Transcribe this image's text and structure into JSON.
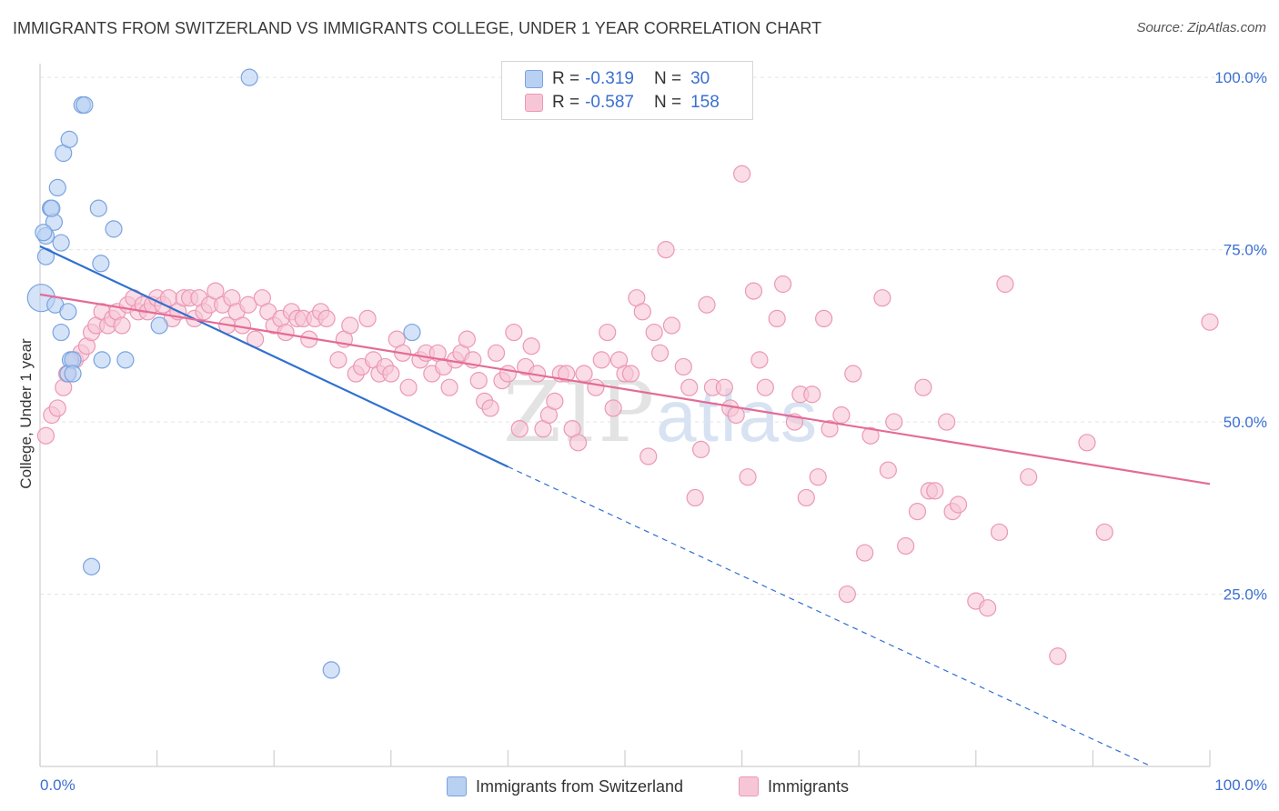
{
  "header": {
    "title": "IMMIGRANTS FROM SWITZERLAND VS IMMIGRANTS COLLEGE, UNDER 1 YEAR CORRELATION CHART",
    "source": "Source: ZipAtlas.com"
  },
  "watermark": {
    "zip": "ZIP",
    "atlas": "atlas"
  },
  "legend": {
    "rows": [
      {
        "r_label": "R =",
        "r_value": "-0.319",
        "n_label": "N =",
        "n_value": "30"
      },
      {
        "r_label": "R =",
        "r_value": "-0.587",
        "n_label": "N =",
        "n_value": "158"
      }
    ]
  },
  "bottom_legend": {
    "series1": "Immigrants from Switzerland",
    "series2": "Immigrants"
  },
  "colors": {
    "blue_fill": "#b8d0f1",
    "blue_stroke": "#7aa3e0",
    "blue_line": "#2f6fd0",
    "pink_fill": "#f7c6d6",
    "pink_stroke": "#ec98b4",
    "pink_line": "#e46b97",
    "tick_label": "#3b6fd1",
    "grid": "#e4e4e4"
  },
  "chart_data": {
    "type": "scatter",
    "title": "IMMIGRANTS FROM SWITZERLAND VS IMMIGRANTS COLLEGE, UNDER 1 YEAR CORRELATION CHART",
    "xlabel": "",
    "ylabel": "College, Under 1 year",
    "xlim": [
      0,
      100
    ],
    "ylim": [
      0,
      102
    ],
    "x_tick_labels": [
      "0.0%",
      "100.0%"
    ],
    "y_ticks": [
      25,
      50,
      75,
      100
    ],
    "y_tick_labels": [
      "25.0%",
      "50.0%",
      "75.0%",
      "100.0%"
    ],
    "grid": true,
    "legend_position": "top-center",
    "series": [
      {
        "name": "Immigrants from Switzerland",
        "color": "#b8d0f1",
        "trend": {
          "x0": 0,
          "y0": 75.5,
          "x1": 40,
          "y1": 43.5,
          "dashed_to_x": 95,
          "dashed_y": 0
        },
        "points": [
          [
            0.1,
            68
          ],
          [
            0.5,
            77
          ],
          [
            0.5,
            74
          ],
          [
            0.9,
            81
          ],
          [
            1.2,
            79
          ],
          [
            1.0,
            81
          ],
          [
            1.5,
            84
          ],
          [
            1.8,
            76
          ],
          [
            1.8,
            63
          ],
          [
            2.0,
            89
          ],
          [
            1.3,
            67
          ],
          [
            2.4,
            66
          ],
          [
            2.6,
            59
          ],
          [
            2.4,
            57
          ],
          [
            2.8,
            59
          ],
          [
            2.8,
            57
          ],
          [
            2.5,
            91
          ],
          [
            3.6,
            96
          ],
          [
            3.8,
            96
          ],
          [
            5.0,
            81
          ],
          [
            5.2,
            73
          ],
          [
            6.3,
            78
          ],
          [
            5.3,
            59
          ],
          [
            7.3,
            59
          ],
          [
            10.2,
            64
          ],
          [
            17.9,
            100
          ],
          [
            4.4,
            29
          ],
          [
            24.9,
            14
          ],
          [
            31.8,
            63
          ],
          [
            0.3,
            77.5
          ]
        ]
      },
      {
        "name": "Immigrants",
        "color": "#f7c6d6",
        "trend": {
          "x0": 0,
          "y0": 68.5,
          "x1": 100,
          "y1": 41
        },
        "points": [
          [
            0.5,
            48
          ],
          [
            1.0,
            51
          ],
          [
            1.5,
            52
          ],
          [
            2.0,
            55
          ],
          [
            2.3,
            57
          ],
          [
            3.0,
            59
          ],
          [
            3.5,
            60
          ],
          [
            4.0,
            61
          ],
          [
            4.4,
            63
          ],
          [
            4.8,
            64
          ],
          [
            5.3,
            66
          ],
          [
            5.8,
            64
          ],
          [
            6.2,
            65
          ],
          [
            6.6,
            66
          ],
          [
            7.0,
            64
          ],
          [
            7.5,
            67
          ],
          [
            8.0,
            68
          ],
          [
            8.4,
            66
          ],
          [
            8.8,
            67
          ],
          [
            9.2,
            66
          ],
          [
            9.6,
            67
          ],
          [
            10.0,
            68
          ],
          [
            10.5,
            67
          ],
          [
            11.0,
            68
          ],
          [
            11.3,
            65
          ],
          [
            11.8,
            66
          ],
          [
            12.3,
            68
          ],
          [
            12.8,
            68
          ],
          [
            13.2,
            65
          ],
          [
            13.6,
            68
          ],
          [
            14.0,
            66
          ],
          [
            14.5,
            67
          ],
          [
            15.0,
            69
          ],
          [
            15.6,
            67
          ],
          [
            16.0,
            64
          ],
          [
            16.4,
            68
          ],
          [
            16.8,
            66
          ],
          [
            17.3,
            64
          ],
          [
            17.8,
            67
          ],
          [
            18.4,
            62
          ],
          [
            19.0,
            68
          ],
          [
            19.5,
            66
          ],
          [
            20.0,
            64
          ],
          [
            20.6,
            65
          ],
          [
            21.0,
            63
          ],
          [
            21.5,
            66
          ],
          [
            22.0,
            65
          ],
          [
            22.5,
            65
          ],
          [
            23.0,
            62
          ],
          [
            23.5,
            65
          ],
          [
            24.0,
            66
          ],
          [
            24.5,
            65
          ],
          [
            25.5,
            59
          ],
          [
            26.0,
            62
          ],
          [
            26.5,
            64
          ],
          [
            27.0,
            57
          ],
          [
            27.5,
            58
          ],
          [
            28.0,
            65
          ],
          [
            28.5,
            59
          ],
          [
            29.0,
            57
          ],
          [
            29.5,
            58
          ],
          [
            30.0,
            57
          ],
          [
            30.5,
            62
          ],
          [
            31.0,
            60
          ],
          [
            31.5,
            55
          ],
          [
            32.5,
            59
          ],
          [
            33.0,
            60
          ],
          [
            33.5,
            57
          ],
          [
            34.0,
            60
          ],
          [
            34.5,
            58
          ],
          [
            35.0,
            55
          ],
          [
            35.5,
            59
          ],
          [
            36.0,
            60
          ],
          [
            36.5,
            62
          ],
          [
            37.0,
            59
          ],
          [
            37.5,
            56
          ],
          [
            38.0,
            53
          ],
          [
            38.5,
            52
          ],
          [
            39.0,
            60
          ],
          [
            39.5,
            56
          ],
          [
            40.0,
            57
          ],
          [
            40.5,
            63
          ],
          [
            41.0,
            49
          ],
          [
            41.5,
            58
          ],
          [
            42.0,
            61
          ],
          [
            42.5,
            57
          ],
          [
            43.0,
            49
          ],
          [
            43.5,
            51
          ],
          [
            44.0,
            53
          ],
          [
            44.5,
            57
          ],
          [
            45.0,
            57
          ],
          [
            45.5,
            49
          ],
          [
            46.0,
            47
          ],
          [
            46.5,
            57
          ],
          [
            47.5,
            55
          ],
          [
            48.0,
            59
          ],
          [
            48.5,
            63
          ],
          [
            49.0,
            52
          ],
          [
            49.5,
            59
          ],
          [
            50.0,
            57
          ],
          [
            50.5,
            57
          ],
          [
            51.0,
            68
          ],
          [
            51.5,
            66
          ],
          [
            52.0,
            45
          ],
          [
            52.5,
            63
          ],
          [
            53.0,
            60
          ],
          [
            53.5,
            75
          ],
          [
            54.0,
            64
          ],
          [
            55.0,
            58
          ],
          [
            55.5,
            55
          ],
          [
            56.0,
            39
          ],
          [
            56.5,
            46
          ],
          [
            57.0,
            67
          ],
          [
            57.5,
            55
          ],
          [
            58.5,
            55
          ],
          [
            59.0,
            52
          ],
          [
            59.5,
            51
          ],
          [
            60.0,
            86
          ],
          [
            60.5,
            42
          ],
          [
            61.0,
            69
          ],
          [
            61.5,
            59
          ],
          [
            62.0,
            55
          ],
          [
            63.0,
            65
          ],
          [
            63.5,
            70
          ],
          [
            64.5,
            50
          ],
          [
            65.0,
            54
          ],
          [
            65.5,
            39
          ],
          [
            66.0,
            54
          ],
          [
            66.5,
            42
          ],
          [
            67.0,
            65
          ],
          [
            67.5,
            49
          ],
          [
            68.5,
            51
          ],
          [
            69.0,
            25
          ],
          [
            69.5,
            57
          ],
          [
            70.5,
            31
          ],
          [
            71.0,
            48
          ],
          [
            72.0,
            68
          ],
          [
            72.5,
            43
          ],
          [
            73.0,
            50
          ],
          [
            74.0,
            32
          ],
          [
            75.0,
            37
          ],
          [
            75.5,
            55
          ],
          [
            76.0,
            40
          ],
          [
            76.5,
            40
          ],
          [
            77.5,
            50
          ],
          [
            78.0,
            37
          ],
          [
            78.5,
            38
          ],
          [
            80.0,
            24
          ],
          [
            81.0,
            23
          ],
          [
            82.0,
            34
          ],
          [
            82.5,
            70
          ],
          [
            84.5,
            42
          ],
          [
            87.0,
            16
          ],
          [
            89.5,
            47
          ],
          [
            91.0,
            34
          ],
          [
            100.0,
            64.5
          ]
        ]
      }
    ]
  }
}
